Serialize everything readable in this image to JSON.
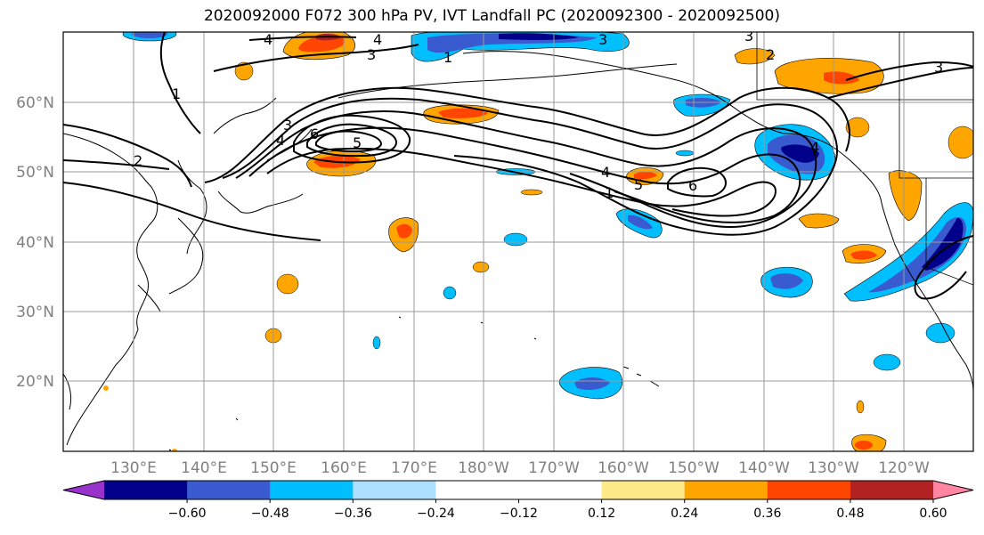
{
  "title": "2020092000 F072 300 hPa PV, IVT Landfall PC (2020092300 - 2020092500)",
  "map": {
    "lat_labels": [
      "60°N",
      "50°N",
      "40°N",
      "30°N",
      "20°N"
    ],
    "lon_labels": [
      "130°E",
      "140°E",
      "150°E",
      "160°E",
      "170°E",
      "180°W",
      "170°W",
      "160°W",
      "150°W",
      "140°W",
      "130°W",
      "120°W"
    ],
    "contour_labels": [
      "1",
      "2",
      "3",
      "4",
      "5",
      "6"
    ],
    "grid_color": "#999999"
  },
  "colorbar": {
    "colors": [
      "#9932CC",
      "#00008B",
      "#3A5BCF",
      "#00BFFF",
      "#ADDFFF",
      "#FFFFFF",
      "#FFFFFF",
      "#FFEA8A",
      "#FFA500",
      "#FF4500",
      "#B22222",
      "#FF85A2"
    ],
    "tick_labels": [
      "−0.60",
      "−0.48",
      "−0.36",
      "−0.24",
      "−0.12",
      "0.12",
      "0.24",
      "0.36",
      "0.48",
      "0.60"
    ]
  }
}
